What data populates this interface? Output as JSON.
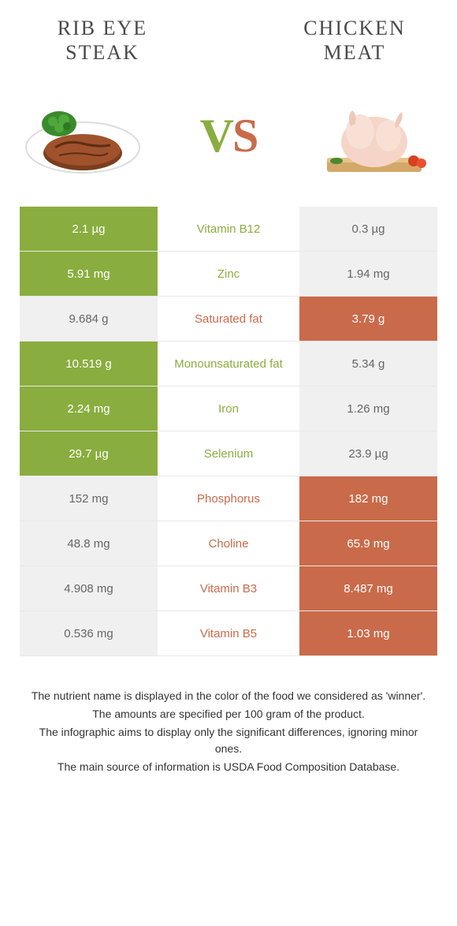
{
  "colors": {
    "green": "#8aad3f",
    "orange": "#c96b4a",
    "gray_bg": "#f0f0f0",
    "gray_text": "#666666",
    "header_text": "#4a4a4a",
    "footer_text": "#333333"
  },
  "header": {
    "left": "Rib eye steak",
    "right": "Chicken meat"
  },
  "vs": {
    "v": "V",
    "s": "S"
  },
  "rows": [
    {
      "left": "2.1 µg",
      "mid": "Vitamin B12",
      "right": "0.3 µg",
      "winner": "left"
    },
    {
      "left": "5.91 mg",
      "mid": "Zinc",
      "right": "1.94 mg",
      "winner": "left"
    },
    {
      "left": "9.684 g",
      "mid": "Saturated fat",
      "right": "3.79 g",
      "winner": "right"
    },
    {
      "left": "10.519 g",
      "mid": "Monounsaturated fat",
      "right": "5.34 g",
      "winner": "left"
    },
    {
      "left": "2.24 mg",
      "mid": "Iron",
      "right": "1.26 mg",
      "winner": "left"
    },
    {
      "left": "29.7 µg",
      "mid": "Selenium",
      "right": "23.9 µg",
      "winner": "left"
    },
    {
      "left": "152 mg",
      "mid": "Phosphorus",
      "right": "182 mg",
      "winner": "right"
    },
    {
      "left": "48.8 mg",
      "mid": "Choline",
      "right": "65.9 mg",
      "winner": "right"
    },
    {
      "left": "4.908 mg",
      "mid": "Vitamin B3",
      "right": "8.487 mg",
      "winner": "right"
    },
    {
      "left": "0.536 mg",
      "mid": "Vitamin B5",
      "right": "1.03 mg",
      "winner": "right"
    }
  ],
  "footer": {
    "l1": "The nutrient name is displayed in the color of the food we considered as 'winner'.",
    "l2": "The amounts are specified per 100 gram of the product.",
    "l3": "The infographic aims to display only the significant differences, ignoring minor ones.",
    "l4": "The main source of information is USDA Food Composition Database."
  }
}
